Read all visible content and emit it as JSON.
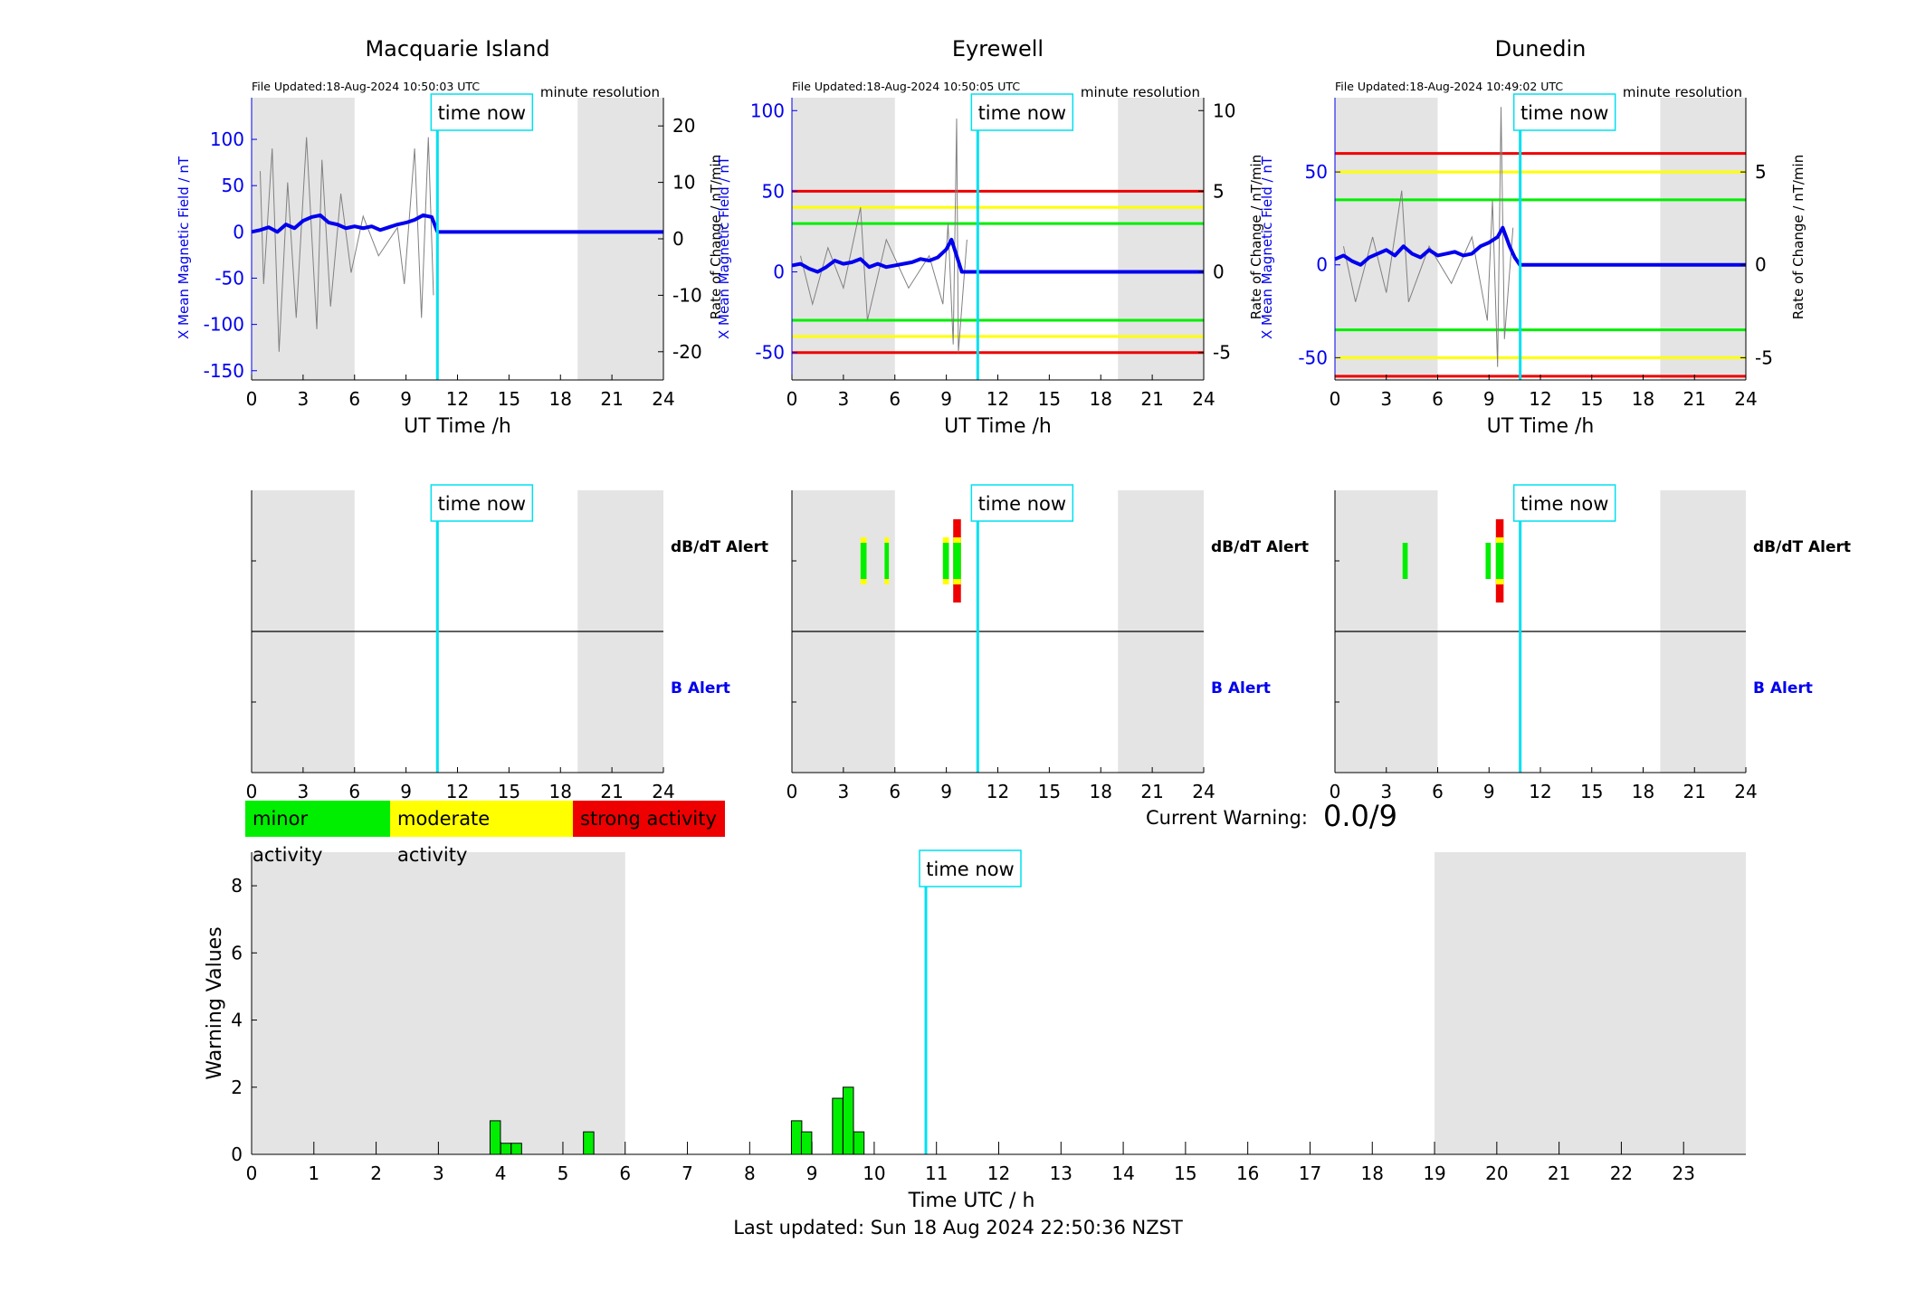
{
  "legend": [
    {
      "label": "minor activity",
      "color": "#00ee00"
    },
    {
      "label": "moderate activity",
      "color": "#ffff00"
    },
    {
      "label": "strong activity",
      "color": "#ee0000"
    }
  ],
  "current_warning": {
    "label": "Current Warning:",
    "value": "0.0/9"
  },
  "last_updated": "Last updated: Sun 18 Aug 2024 22:50:36 NZST",
  "time_now_label": "time now",
  "alert_labels": {
    "dbdt": "dB/dT Alert",
    "b": "B Alert"
  },
  "colors": {
    "x_field": "#0000ee",
    "time_now": "#00e0f0",
    "shade": "#e4e4e4",
    "rate": "#808080"
  },
  "chart_data": [
    {
      "type": "line",
      "title": "Macquarie Island",
      "file_updated": "File Updated:18-Aug-2024 10:50:03 UTC",
      "resolution": "minute resolution",
      "xlabel": "UT Time /h",
      "ylabel_left": "X Mean Magnetic Field / nT",
      "ylabel_right": "Rate of Change / nT/min",
      "xlim": [
        0,
        24
      ],
      "ylim_left": [
        -160,
        145
      ],
      "ylim_right": [
        -25,
        25
      ],
      "x_ticks": [
        0,
        3,
        6,
        9,
        12,
        15,
        18,
        21,
        24
      ],
      "y_ticks_left": [
        -150,
        -100,
        -50,
        0,
        50,
        100
      ],
      "y_ticks_right": [
        -20,
        -10,
        0,
        10,
        20
      ],
      "time_now": 10.83,
      "shaded": [
        [
          0,
          6
        ],
        [
          19,
          24
        ]
      ],
      "thresholds": [],
      "x_mean_points": [
        [
          0,
          0
        ],
        [
          0.5,
          2
        ],
        [
          1,
          5
        ],
        [
          1.5,
          0
        ],
        [
          2,
          8
        ],
        [
          2.5,
          4
        ],
        [
          3,
          12
        ],
        [
          3.5,
          16
        ],
        [
          4,
          18
        ],
        [
          4.5,
          10
        ],
        [
          5,
          8
        ],
        [
          5.5,
          4
        ],
        [
          6,
          6
        ],
        [
          6.5,
          4
        ],
        [
          7,
          6
        ],
        [
          7.5,
          2
        ],
        [
          8,
          5
        ],
        [
          8.5,
          8
        ],
        [
          9,
          10
        ],
        [
          9.5,
          13
        ],
        [
          10,
          18
        ],
        [
          10.5,
          16
        ],
        [
          10.83,
          0
        ],
        [
          24,
          0
        ]
      ],
      "rate_points": [
        [
          0.5,
          12
        ],
        [
          0.7,
          -8
        ],
        [
          1.2,
          16
        ],
        [
          1.6,
          -20
        ],
        [
          2.1,
          10
        ],
        [
          2.6,
          -14
        ],
        [
          3.2,
          18
        ],
        [
          3.8,
          -16
        ],
        [
          4.1,
          14
        ],
        [
          4.6,
          -12
        ],
        [
          5.2,
          8
        ],
        [
          5.8,
          -6
        ],
        [
          6.5,
          4
        ],
        [
          7.4,
          -3
        ],
        [
          8.5,
          2
        ],
        [
          8.9,
          -8
        ],
        [
          9.5,
          16
        ],
        [
          9.9,
          -14
        ],
        [
          10.3,
          18
        ],
        [
          10.6,
          -10
        ]
      ],
      "dbdt_bars": [],
      "b_bars": []
    },
    {
      "type": "line",
      "title": "Eyrewell",
      "file_updated": "File Updated:18-Aug-2024 10:50:05 UTC",
      "resolution": "minute resolution",
      "xlabel": "UT Time /h",
      "ylabel_left": "X Mean Magnetic Field / nT",
      "ylabel_right": "Rate of Change / nT/min",
      "xlim": [
        0,
        24
      ],
      "ylim_left": [
        -67,
        108
      ],
      "ylim_right": [
        -6.7,
        10.8
      ],
      "x_ticks": [
        0,
        3,
        6,
        9,
        12,
        15,
        18,
        21,
        24
      ],
      "y_ticks_left": [
        -50,
        0,
        50,
        100
      ],
      "y_ticks_right": [
        -5,
        0,
        5,
        10
      ],
      "time_now": 10.83,
      "shaded": [
        [
          0,
          6
        ],
        [
          19,
          24
        ]
      ],
      "thresholds": [
        {
          "value": 50,
          "color": "#ee0000"
        },
        {
          "value": 40,
          "color": "#ffff00"
        },
        {
          "value": 30,
          "color": "#00ee00"
        },
        {
          "value": -30,
          "color": "#00ee00"
        },
        {
          "value": -40,
          "color": "#ffff00"
        },
        {
          "value": -50,
          "color": "#ee0000"
        }
      ],
      "x_mean_points": [
        [
          0,
          4
        ],
        [
          0.5,
          5
        ],
        [
          1,
          2
        ],
        [
          1.5,
          0
        ],
        [
          2,
          3
        ],
        [
          2.5,
          7
        ],
        [
          3,
          5
        ],
        [
          3.5,
          6
        ],
        [
          4,
          8
        ],
        [
          4.5,
          3
        ],
        [
          5,
          5
        ],
        [
          5.5,
          3
        ],
        [
          6,
          4
        ],
        [
          6.5,
          5
        ],
        [
          7,
          6
        ],
        [
          7.5,
          8
        ],
        [
          8,
          7
        ],
        [
          8.5,
          9
        ],
        [
          9,
          14
        ],
        [
          9.3,
          20
        ],
        [
          9.6,
          10
        ],
        [
          9.9,
          0
        ],
        [
          24,
          0
        ]
      ],
      "rate_points": [
        [
          0.5,
          1
        ],
        [
          1.2,
          -2
        ],
        [
          2.1,
          1.5
        ],
        [
          3,
          -1
        ],
        [
          4,
          4
        ],
        [
          4.4,
          -3
        ],
        [
          5.5,
          2
        ],
        [
          6.8,
          -1
        ],
        [
          8,
          1
        ],
        [
          8.8,
          -2
        ],
        [
          9.1,
          3
        ],
        [
          9.4,
          -4.5
        ],
        [
          9.6,
          9.5
        ],
        [
          9.7,
          -5
        ],
        [
          10.2,
          2
        ]
      ],
      "dbdt_bars": [
        {
          "x": 4.0,
          "w": 0.35,
          "segments": [
            {
              "value": 0.5,
              "color": "#ffff00"
            },
            {
              "value": 1.0,
              "color": "#00ee00"
            }
          ]
        },
        {
          "x": 5.4,
          "w": 0.25,
          "segments": [
            {
              "value": 0.5,
              "color": "#ffff00"
            },
            {
              "value": 1.0,
              "color": "#00ee00"
            }
          ]
        },
        {
          "x": 8.8,
          "w": 0.35,
          "segments": [
            {
              "value": 0.5,
              "color": "#ffff00"
            },
            {
              "value": 1.0,
              "color": "#00ee00"
            }
          ]
        },
        {
          "x": 9.4,
          "w": 0.45,
          "segments": [
            {
              "value": 0.9,
              "color": "#ee0000"
            },
            {
              "value": 0.5,
              "color": "#ffff00"
            },
            {
              "value": 1.0,
              "color": "#00ee00"
            }
          ]
        }
      ],
      "b_bars": []
    },
    {
      "type": "line",
      "title": "Dunedin",
      "file_updated": "File Updated:18-Aug-2024 10:49:02 UTC",
      "resolution": "minute resolution",
      "xlabel": "UT Time /h",
      "ylabel_left": "X Mean Magnetic Field / nT",
      "ylabel_right": "Rate of Change / nT/min",
      "xlim": [
        0,
        24
      ],
      "ylim_left": [
        -62,
        90
      ],
      "ylim_right": [
        -6.2,
        9
      ],
      "x_ticks": [
        0,
        3,
        6,
        9,
        12,
        15,
        18,
        21,
        24
      ],
      "y_ticks_left": [
        -50,
        0,
        50
      ],
      "y_ticks_right": [
        -5,
        0,
        5
      ],
      "time_now": 10.82,
      "shaded": [
        [
          0,
          6
        ],
        [
          19,
          24
        ]
      ],
      "thresholds": [
        {
          "value": 60,
          "color": "#ee0000"
        },
        {
          "value": 50,
          "color": "#ffff00"
        },
        {
          "value": 35,
          "color": "#00ee00"
        },
        {
          "value": -35,
          "color": "#00ee00"
        },
        {
          "value": -50,
          "color": "#ffff00"
        },
        {
          "value": -60,
          "color": "#ee0000"
        }
      ],
      "x_mean_points": [
        [
          0,
          3
        ],
        [
          0.5,
          5
        ],
        [
          1,
          2
        ],
        [
          1.5,
          0
        ],
        [
          2,
          4
        ],
        [
          2.5,
          6
        ],
        [
          3,
          8
        ],
        [
          3.5,
          5
        ],
        [
          4,
          10
        ],
        [
          4.5,
          6
        ],
        [
          5,
          4
        ],
        [
          5.5,
          8
        ],
        [
          6,
          5
        ],
        [
          6.5,
          6
        ],
        [
          7,
          7
        ],
        [
          7.5,
          5
        ],
        [
          8,
          6
        ],
        [
          8.5,
          10
        ],
        [
          9,
          12
        ],
        [
          9.5,
          15
        ],
        [
          9.8,
          20
        ],
        [
          10.2,
          10
        ],
        [
          10.5,
          4
        ],
        [
          10.8,
          0
        ],
        [
          24,
          0
        ]
      ],
      "rate_points": [
        [
          0.5,
          1
        ],
        [
          1.2,
          -2
        ],
        [
          2.2,
          1.5
        ],
        [
          3,
          -1.5
        ],
        [
          3.9,
          4
        ],
        [
          4.3,
          -2
        ],
        [
          5.5,
          1
        ],
        [
          6.8,
          -1
        ],
        [
          8,
          1.5
        ],
        [
          8.9,
          -3
        ],
        [
          9.2,
          3.5
        ],
        [
          9.5,
          -5.5
        ],
        [
          9.7,
          8.5
        ],
        [
          9.9,
          -4
        ],
        [
          10.4,
          2
        ]
      ],
      "dbdt_bars": [
        {
          "x": 3.95,
          "w": 0.3,
          "segments": [
            {
              "value": 1.0,
              "color": "#00ee00"
            }
          ]
        },
        {
          "x": 8.8,
          "w": 0.3,
          "segments": [
            {
              "value": 1.0,
              "color": "#00ee00"
            }
          ]
        },
        {
          "x": 9.4,
          "w": 0.45,
          "segments": [
            {
              "value": 0.9,
              "color": "#ee0000"
            },
            {
              "value": 0.5,
              "color": "#ffff00"
            },
            {
              "value": 1.0,
              "color": "#00ee00"
            }
          ]
        }
      ],
      "b_bars": []
    },
    {
      "type": "bar",
      "title": "",
      "xlabel": "Time UTC / h",
      "ylabel": "Warning Values",
      "xlim": [
        0,
        24
      ],
      "ylim": [
        0,
        9
      ],
      "x_ticks": [
        0,
        1,
        2,
        3,
        4,
        5,
        6,
        7,
        8,
        9,
        10,
        11,
        12,
        13,
        14,
        15,
        16,
        17,
        18,
        19,
        20,
        21,
        22,
        23
      ],
      "y_ticks": [
        0,
        2,
        4,
        6,
        8
      ],
      "time_now": 10.83,
      "shaded": [
        [
          0,
          6
        ],
        [
          19,
          24
        ]
      ],
      "bar_width": 0.1667,
      "bars": [
        {
          "x": 3.83,
          "value": 1.0
        },
        {
          "x": 4.0,
          "value": 0.33
        },
        {
          "x": 4.17,
          "value": 0.33
        },
        {
          "x": 5.33,
          "value": 0.67
        },
        {
          "x": 8.67,
          "value": 1.0
        },
        {
          "x": 8.83,
          "value": 0.67
        },
        {
          "x": 9.33,
          "value": 1.67
        },
        {
          "x": 9.5,
          "value": 2.0
        },
        {
          "x": 9.67,
          "value": 0.67
        }
      ]
    }
  ]
}
